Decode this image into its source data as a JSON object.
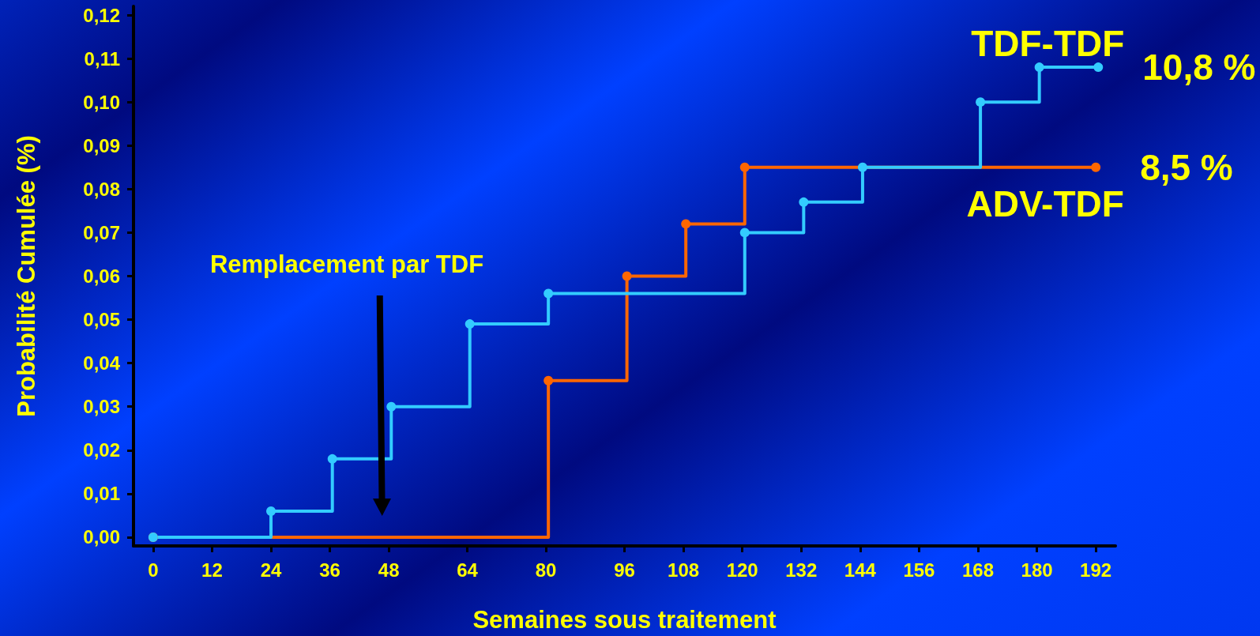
{
  "chart_data": {
    "type": "step",
    "xlabel": "Semaines sous traitement",
    "ylabel": "Probabilité Cumulée (%)",
    "annotations": [
      "Remplacement par TDF"
    ],
    "series": [
      {
        "name": "ADV-TDF",
        "color": "#ff6600",
        "x": [
          0,
          80.5,
          96.5,
          108.5,
          120.5,
          192
        ],
        "values": [
          0,
          0.036,
          0.06,
          0.072,
          0.085,
          0.085
        ],
        "value_labels": [
          null,
          null,
          null,
          null,
          null,
          "8,5 %"
        ]
      },
      {
        "name": "TDF-TDF",
        "color": "#33ccff",
        "x": [
          0,
          24,
          36.5,
          48.5,
          64.5,
          80.5,
          120.5,
          132.5,
          144.5,
          168.5,
          180.5,
          192.5
        ],
        "values": [
          0,
          0.006,
          0.018,
          0.03,
          0.049,
          0.056,
          0.07,
          0.077,
          0.085,
          0.1,
          0.108,
          0.108
        ],
        "value_labels": [
          null,
          null,
          null,
          null,
          null,
          null,
          null,
          null,
          null,
          null,
          null,
          "10,8 %"
        ]
      }
    ],
    "xlim": [
      -4,
      196
    ],
    "xticks": [
      0,
      12,
      24,
      36,
      48,
      64,
      80,
      96,
      108,
      120,
      132,
      144,
      156,
      168,
      180,
      192
    ],
    "ylim": [
      -0.002,
      0.122
    ],
    "yticks": [
      {
        "value": 0,
        "label": "0,00"
      },
      {
        "value": 0.01,
        "label": "0,01"
      },
      {
        "value": 0.02,
        "label": "0,02"
      },
      {
        "value": 0.03,
        "label": "0,03"
      },
      {
        "value": 0.04,
        "label": "0,04"
      },
      {
        "value": 0.05,
        "label": "0,05"
      },
      {
        "value": 0.06,
        "label": "0,06"
      },
      {
        "value": 0.07,
        "label": "0,07"
      },
      {
        "value": 0.08,
        "label": "0,08"
      },
      {
        "value": 0.09,
        "label": "0,09"
      },
      {
        "value": 0.1,
        "label": "0,10"
      },
      {
        "value": 0.11,
        "label": "0,11"
      },
      {
        "value": 0.12,
        "label": "0,12"
      }
    ],
    "grid": false,
    "legend": false,
    "marker": "circle",
    "line_style": "solid"
  }
}
